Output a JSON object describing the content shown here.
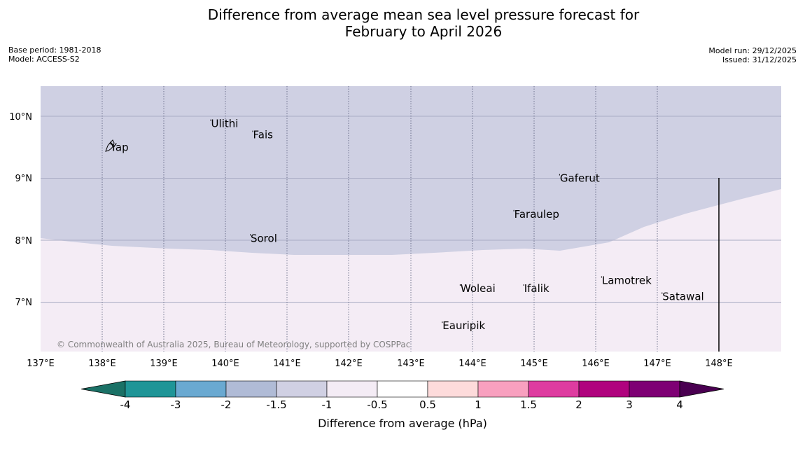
{
  "title": {
    "line1": "Difference from average mean sea level pressure forecast for",
    "line2": "February to April 2026"
  },
  "meta_left": {
    "base_period": "Base period: 1981-2018",
    "model": "Model: ACCESS-S2"
  },
  "meta_right": {
    "model_run": "Model run: 29/12/2025",
    "issued": "Issued: 31/12/2025"
  },
  "axes": {
    "lat_ticks": [
      "10°N",
      "9°N",
      "8°N",
      "7°N"
    ],
    "lon_ticks": [
      "137°E",
      "138°E",
      "139°E",
      "140°E",
      "141°E",
      "142°E",
      "143°E",
      "144°E",
      "145°E",
      "146°E",
      "147°E",
      "148°E"
    ]
  },
  "places": [
    {
      "name": "Ulithi",
      "lon": 139.75,
      "lat": 9.88
    },
    {
      "name": "Fais",
      "lon": 140.43,
      "lat": 9.7
    },
    {
      "name": "Yap",
      "lon": 138.12,
      "lat": 9.5
    },
    {
      "name": "Gaferut",
      "lon": 145.4,
      "lat": 9.0
    },
    {
      "name": "Faraulep",
      "lon": 144.66,
      "lat": 8.42
    },
    {
      "name": "Sorol",
      "lon": 140.39,
      "lat": 8.03
    },
    {
      "name": "Lamotrek",
      "lon": 146.08,
      "lat": 7.35
    },
    {
      "name": "Woleai",
      "lon": 143.79,
      "lat": 7.22
    },
    {
      "name": "Ifalik",
      "lon": 144.82,
      "lat": 7.22
    },
    {
      "name": "Satawal",
      "lon": 147.06,
      "lat": 7.09
    },
    {
      "name": "Eauripik",
      "lon": 143.5,
      "lat": 6.62
    }
  ],
  "field": {
    "negative_region_class": "-1.5 to -1",
    "positive_region_class": "-1 to -0.5",
    "colors": {
      "negative": "#cfd0e3",
      "positive": "#f4ecf5"
    }
  },
  "credit": "© Commonwealth of Australia 2025, Bureau of Meteorology, supported by COSPPac",
  "colorbar": {
    "label": "Difference from average (hPa)",
    "ticks": [
      "-4",
      "-3",
      "-2",
      "-1.5",
      "-1",
      "-0.5",
      "0.5",
      "1",
      "1.5",
      "2",
      "3",
      "4"
    ],
    "colors": [
      "#1a7166",
      "#1f9597",
      "#6aa9d1",
      "#b0bbd6",
      "#d0d0e3",
      "#f4ecf5",
      "#ffffff",
      "#fddbdb",
      "#f8a0bf",
      "#de3ca0",
      "#b0037e",
      "#7e0074",
      "#4a0051"
    ]
  }
}
